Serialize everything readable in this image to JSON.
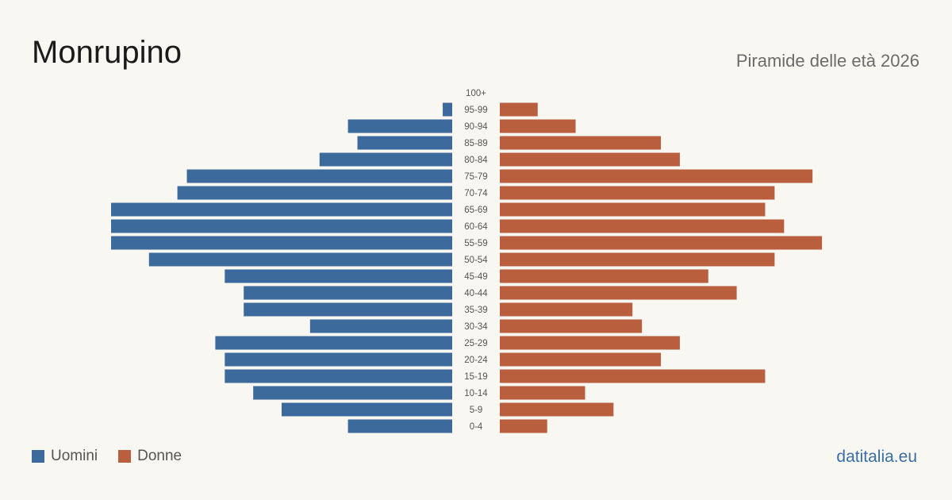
{
  "header": {
    "title": "Monrupino",
    "subtitle": "Piramide delle età 2026"
  },
  "footer": {
    "source": "datitalia.eu"
  },
  "colors": {
    "men": "#3d6a9c",
    "women": "#b95f3d",
    "background": "#f9f7f2",
    "age_label": "#555555"
  },
  "chart_data": {
    "type": "bar",
    "orientation": "horizontal-pyramid",
    "categories": [
      "100+",
      "95-99",
      "90-94",
      "85-89",
      "80-84",
      "75-79",
      "70-74",
      "65-69",
      "60-64",
      "55-59",
      "50-54",
      "45-49",
      "40-44",
      "35-39",
      "30-34",
      "25-29",
      "20-24",
      "15-19",
      "10-14",
      "5-9",
      "0-4"
    ],
    "series": [
      {
        "name": "Uomini",
        "values": [
          0,
          1,
          11,
          10,
          14,
          28,
          29,
          36,
          36,
          36,
          32,
          24,
          22,
          22,
          15,
          25,
          24,
          24,
          21,
          18,
          11
        ]
      },
      {
        "name": "Donne",
        "values": [
          0,
          4,
          8,
          17,
          19,
          33,
          29,
          28,
          30,
          34,
          29,
          22,
          25,
          14,
          15,
          19,
          17,
          28,
          9,
          12,
          5
        ]
      }
    ],
    "xlim": [
      0,
      36
    ],
    "legend_position": "bottom-left",
    "grid": false
  }
}
